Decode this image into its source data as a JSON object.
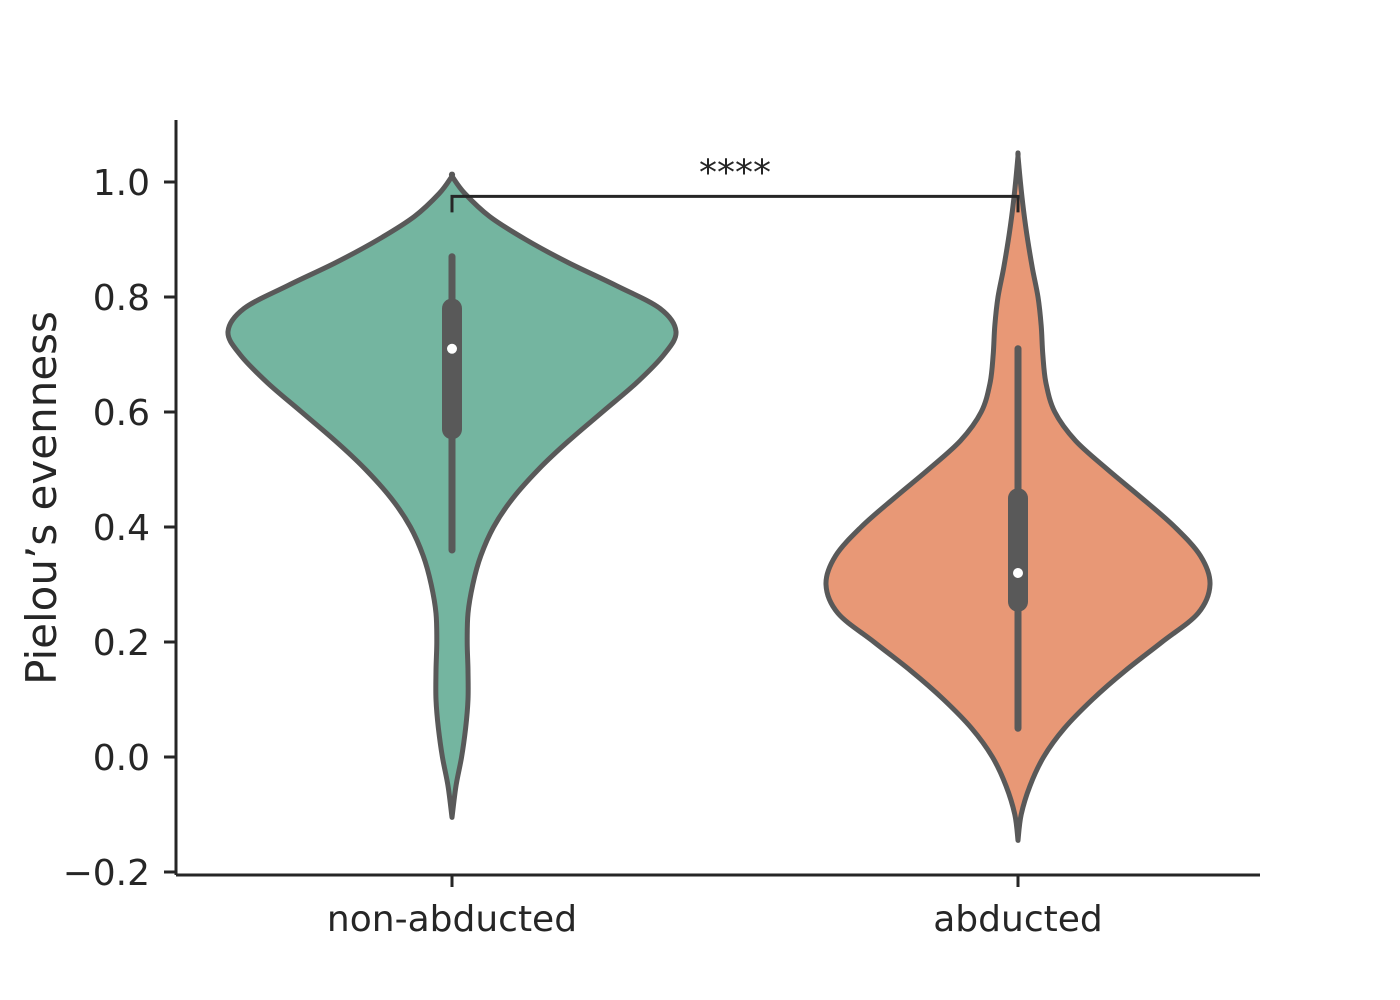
{
  "chart_data": {
    "type": "violin",
    "title": "",
    "xlabel": "",
    "ylabel": "Pielou’s evenness",
    "ylim": [
      -0.2,
      1.1
    ],
    "yticks": [
      -0.2,
      0.0,
      0.2,
      0.4,
      0.6,
      0.8,
      1.0
    ],
    "ytick_labels": [
      "−0.2",
      "0.0",
      "0.2",
      "0.4",
      "0.6",
      "0.8",
      "1.0"
    ],
    "grid": false,
    "legend": "none",
    "categories": [
      "non-abducted",
      "abducted"
    ],
    "series": [
      {
        "category": "non-abducted",
        "color": "#74b5a0",
        "edge_color": "#595959",
        "median": 0.71,
        "q1": 0.57,
        "q3": 0.78,
        "whisker_low": 0.36,
        "whisker_high": 0.87,
        "density": [
          [
            -0.105,
            0.0
          ],
          [
            -0.05,
            0.05
          ],
          [
            0.0,
            0.12
          ],
          [
            0.05,
            0.17
          ],
          [
            0.1,
            0.2
          ],
          [
            0.15,
            0.2
          ],
          [
            0.2,
            0.19
          ],
          [
            0.25,
            0.2
          ],
          [
            0.3,
            0.26
          ],
          [
            0.35,
            0.36
          ],
          [
            0.4,
            0.52
          ],
          [
            0.45,
            0.76
          ],
          [
            0.5,
            1.08
          ],
          [
            0.55,
            1.46
          ],
          [
            0.6,
            1.88
          ],
          [
            0.65,
            2.3
          ],
          [
            0.7,
            2.65
          ],
          [
            0.74,
            2.8
          ],
          [
            0.78,
            2.6
          ],
          [
            0.82,
            2.05
          ],
          [
            0.86,
            1.45
          ],
          [
            0.9,
            0.92
          ],
          [
            0.94,
            0.47
          ],
          [
            0.98,
            0.16
          ],
          [
            1.01,
            0.0
          ]
        ]
      },
      {
        "category": "abducted",
        "color": "#e89876",
        "edge_color": "#595959",
        "median": 0.32,
        "q1": 0.27,
        "q3": 0.45,
        "whisker_low": 0.05,
        "whisker_high": 0.71,
        "density": [
          [
            -0.145,
            0.0
          ],
          [
            -0.1,
            0.04
          ],
          [
            -0.05,
            0.15
          ],
          [
            0.0,
            0.32
          ],
          [
            0.05,
            0.58
          ],
          [
            0.1,
            0.93
          ],
          [
            0.15,
            1.34
          ],
          [
            0.2,
            1.8
          ],
          [
            0.25,
            2.25
          ],
          [
            0.3,
            2.4
          ],
          [
            0.35,
            2.28
          ],
          [
            0.4,
            1.96
          ],
          [
            0.45,
            1.55
          ],
          [
            0.5,
            1.12
          ],
          [
            0.55,
            0.72
          ],
          [
            0.6,
            0.46
          ],
          [
            0.65,
            0.35
          ],
          [
            0.7,
            0.31
          ],
          [
            0.75,
            0.29
          ],
          [
            0.8,
            0.25
          ],
          [
            0.85,
            0.18
          ],
          [
            0.9,
            0.12
          ],
          [
            0.95,
            0.07
          ],
          [
            1.0,
            0.03
          ],
          [
            1.045,
            0.0
          ]
        ]
      }
    ],
    "annotations": [
      {
        "type": "significance-bracket",
        "from": "non-abducted",
        "to": "abducted",
        "y": 0.975,
        "text": "****"
      }
    ]
  }
}
